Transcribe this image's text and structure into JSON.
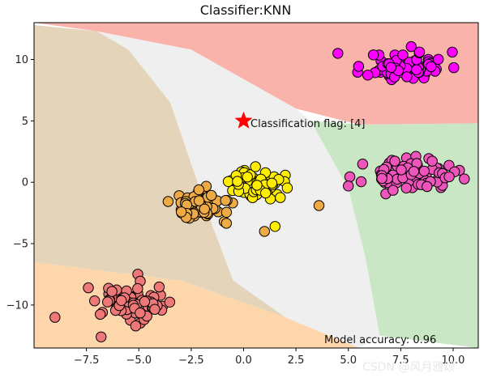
{
  "chart_data": {
    "type": "scatter",
    "title": "Classifier:KNN",
    "xlim": [
      -10.0,
      11.2
    ],
    "ylim": [
      -13.5,
      13.0
    ],
    "xticks": [
      -7.5,
      -5.0,
      -2.5,
      0.0,
      2.5,
      5.0,
      7.5,
      10.0
    ],
    "yticks": [
      -10,
      -5,
      0,
      5,
      10
    ],
    "xtick_labels": [
      "−7.5",
      "−5.0",
      "−2.5",
      "0.0",
      "2.5",
      "5.0",
      "7.5",
      "10.0"
    ],
    "ytick_labels": [
      "−10",
      "−5",
      "0",
      "5",
      "10"
    ],
    "regions": [
      {
        "class": "top-red",
        "color": "#f9b3ab",
        "polygon": [
          [
            -10,
            13
          ],
          [
            11.2,
            13
          ],
          [
            11.2,
            4.8
          ],
          [
            5.5,
            4.7
          ],
          [
            2.5,
            6.0
          ],
          [
            -2.5,
            10.8
          ],
          [
            -7.0,
            12.3
          ],
          [
            -10,
            13
          ]
        ]
      },
      {
        "class": "middle-gray",
        "color": "#efefef",
        "polygon": [
          [
            -7.0,
            12.3
          ],
          [
            -2.5,
            10.8
          ],
          [
            2.5,
            6.0
          ],
          [
            3.2,
            5.0
          ],
          [
            5.0,
            -0.5
          ],
          [
            5.8,
            -6.0
          ],
          [
            6.5,
            -12.5
          ],
          [
            5.5,
            -13.5
          ],
          [
            2.0,
            -11.0
          ],
          [
            -0.5,
            -8.0
          ],
          [
            -1.5,
            -3.5
          ],
          [
            -2.5,
            1.5
          ],
          [
            -3.5,
            6.5
          ],
          [
            -5.5,
            10.8
          ]
        ]
      },
      {
        "class": "right-green",
        "color": "#c9e7c4",
        "polygon": [
          [
            3.2,
            5.0
          ],
          [
            5.5,
            4.7
          ],
          [
            11.2,
            4.8
          ],
          [
            11.2,
            -13.5
          ],
          [
            6.5,
            -12.5
          ],
          [
            5.8,
            -6.0
          ],
          [
            5.0,
            -0.5
          ]
        ]
      },
      {
        "class": "left-tan",
        "color": "#e3d4ba",
        "polygon": [
          [
            -10,
            12.8
          ],
          [
            -7.0,
            12.3
          ],
          [
            -5.5,
            10.8
          ],
          [
            -3.5,
            6.5
          ],
          [
            -2.5,
            1.5
          ],
          [
            -1.5,
            -3.5
          ],
          [
            -0.5,
            -8.0
          ],
          [
            2.0,
            -11.0
          ],
          [
            -3.0,
            -8.0
          ],
          [
            -10,
            -6.5
          ]
        ]
      },
      {
        "class": "bottom-orange",
        "color": "#fdd6ac",
        "polygon": [
          [
            -10,
            -6.5
          ],
          [
            -3.0,
            -8.0
          ],
          [
            2.0,
            -11.0
          ],
          [
            5.5,
            -13.5
          ],
          [
            -10,
            -13.5
          ]
        ]
      }
    ],
    "series": [
      {
        "name": "top-right cluster",
        "color": "#ff00ff",
        "center": [
          7.8,
          9.4
        ],
        "spread": [
          1.7,
          1.1
        ],
        "count": 80,
        "seed": 11
      },
      {
        "name": "right cluster",
        "color": "#ee55bb",
        "center": [
          7.9,
          0.6
        ],
        "spread": [
          1.9,
          1.1
        ],
        "count": 80,
        "seed": 23
      },
      {
        "name": "center yellow cluster",
        "color": "#ffee00",
        "center": [
          0.7,
          -0.2
        ],
        "spread": [
          1.1,
          1.1
        ],
        "count": 60,
        "seed": 37
      },
      {
        "name": "center orange cluster",
        "color": "#eeaa44",
        "center": [
          -1.8,
          -1.8
        ],
        "spread": [
          1.4,
          1.1
        ],
        "count": 60,
        "seed": 41
      },
      {
        "name": "bottom-left cluster",
        "color": "#ee7777",
        "center": [
          -5.2,
          -10.0
        ],
        "spread": [
          1.4,
          1.2
        ],
        "count": 80,
        "seed": 59
      }
    ],
    "extra_points": [
      {
        "x": -9.0,
        "y": -11.0,
        "color": "#ee7777"
      },
      {
        "x": -6.8,
        "y": -12.6,
        "color": "#ee7777"
      },
      {
        "x": 3.6,
        "y": -1.9,
        "color": "#eeaa44"
      },
      {
        "x": 1.5,
        "y": -3.6,
        "color": "#ffee00"
      },
      {
        "x": 1.0,
        "y": -4.0,
        "color": "#eeaa44"
      },
      {
        "x": 4.5,
        "y": 10.5,
        "color": "#ff00ff"
      },
      {
        "x": 5.0,
        "y": -0.3,
        "color": "#ee55bb"
      }
    ],
    "marker": {
      "label": "Classification flag: [4]",
      "x": 0.0,
      "y": 5.0,
      "color": "#ff0000",
      "symbol": "star"
    },
    "accuracy_label": "Model accuracy: 0.96",
    "watermark": "CSDN @风月雅颂"
  }
}
